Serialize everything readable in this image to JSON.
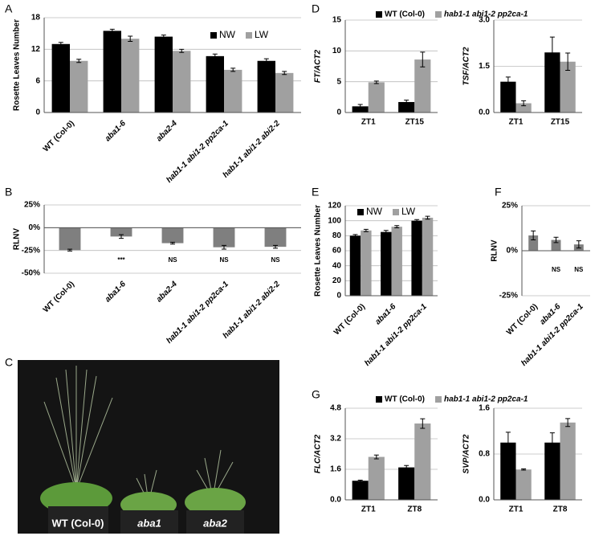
{
  "chart_data": [
    {
      "type": "bar",
      "panel": "A",
      "ylabel": "Rosette Leaves Number",
      "categories": [
        "WT (Col-0)",
        "aba1-6",
        "aba2-4",
        "hab1-1 abi1-2 pp2ca-1",
        "hab1-1 abi1-2 abi2-2"
      ],
      "series": [
        {
          "name": "NW",
          "color": "#000000",
          "values": [
            13,
            15.5,
            14.4,
            10.7,
            9.8
          ],
          "errors": [
            0.3,
            0.3,
            0.3,
            0.4,
            0.4
          ]
        },
        {
          "name": "LW",
          "color": "#a0a0a0",
          "values": [
            9.8,
            14,
            11.7,
            8.1,
            7.5
          ],
          "errors": [
            0.3,
            0.5,
            0.3,
            0.3,
            0.3
          ]
        }
      ],
      "ylim": [
        0,
        18
      ],
      "yticks": [
        0,
        6,
        12,
        18
      ],
      "grid": true
    },
    {
      "type": "bar",
      "panel": "B",
      "ylabel": "RLNV",
      "categories": [
        "WT (Col-0)",
        "aba1-6",
        "aba2-4",
        "hab1-1 abi1-2 pp2ca-1",
        "hab1-1 abi1-2 abi2-2"
      ],
      "values": [
        -24.6,
        -9.7,
        -17,
        -21.5,
        -21
      ],
      "errors": [
        1,
        2,
        1,
        2,
        1.5
      ],
      "color": "#7f7f7f",
      "significance": [
        null,
        "***",
        "NS",
        "NS",
        "NS"
      ],
      "ylim": [
        -50,
        25
      ],
      "yticks": [
        {
          "value": 25,
          "label": "25%"
        },
        {
          "value": 0,
          "label": "0%"
        },
        {
          "value": -25,
          "label": "-25%"
        },
        {
          "value": -50,
          "label": "-50%"
        }
      ],
      "grid": true
    },
    {
      "type": "bar",
      "panel": "D",
      "ylabel": "FT/ACT2",
      "categories": [
        "ZT1",
        "ZT15"
      ],
      "series": [
        {
          "name": "WT (Col-0)",
          "color": "#000000",
          "values": [
            1,
            1.7
          ],
          "errors": [
            0.3,
            0.3
          ]
        },
        {
          "name": "hab1-1 abi1-2 pp2ca-1",
          "color": "#a0a0a0",
          "values": [
            4.9,
            8.6
          ],
          "errors": [
            0.2,
            1.2
          ]
        }
      ],
      "ylim": [
        0,
        15
      ],
      "yticks": [
        0,
        5,
        10,
        15
      ],
      "grid": true
    },
    {
      "type": "bar",
      "ylabel": "TSF/ACT2",
      "categories": [
        "ZT1",
        "ZT15"
      ],
      "series": [
        {
          "color": "#000000",
          "values": [
            1,
            1.95
          ],
          "errors": [
            0.15,
            0.5
          ]
        },
        {
          "color": "#a0a0a0",
          "values": [
            0.3,
            1.65
          ],
          "errors": [
            0.08,
            0.28
          ]
        }
      ],
      "ylim": [
        0,
        3
      ],
      "yticks": [
        {
          "value": 0,
          "label": "0.0"
        },
        1.5,
        {
          "value": 3,
          "label": "3.0"
        }
      ],
      "grid": true
    },
    {
      "type": "bar",
      "panel": "E",
      "ylabel": "Rosette Leaves Number",
      "categories": [
        "WT (Col-0)",
        "aba1-6",
        "hab1-1 abi1-2 pp2ca-1"
      ],
      "series": [
        {
          "name": "NW",
          "color": "#000000",
          "values": [
            80,
            85,
            100
          ],
          "errors": [
            1.5,
            2,
            1.5
          ]
        },
        {
          "name": "LW",
          "color": "#a0a0a0",
          "values": [
            87,
            92,
            104
          ],
          "errors": [
            1.5,
            1.5,
            2
          ]
        }
      ],
      "ylim": [
        0,
        120
      ],
      "yticks": [
        0,
        20,
        40,
        60,
        80,
        100,
        120
      ],
      "grid": true
    },
    {
      "type": "bar",
      "panel": "F",
      "ylabel": "RLNV",
      "categories": [
        "WT (Col-0)",
        "aba1-6",
        "hab1-1 abi1-2 pp2ca-1"
      ],
      "values": [
        8.5,
        6,
        3.5
      ],
      "errors": [
        2.5,
        1.5,
        2
      ],
      "color": "#7f7f7f",
      "significance": [
        null,
        "NS",
        "NS"
      ],
      "ylim": [
        -25,
        25
      ],
      "yticks": [
        {
          "value": 25,
          "label": "25%"
        },
        {
          "value": 0,
          "label": "0%"
        },
        {
          "value": -25,
          "label": "-25%"
        }
      ],
      "grid": true
    },
    {
      "type": "bar",
      "panel": "G",
      "ylabel": "FLC/ACT2",
      "categories": [
        "ZT1",
        "ZT8"
      ],
      "series": [
        {
          "name": "WT (Col-0)",
          "color": "#000000",
          "values": [
            1,
            1.7
          ],
          "errors": [
            0.03,
            0.1
          ]
        },
        {
          "name": "hab1-1 abi1-2 pp2ca-1",
          "color": "#a0a0a0",
          "values": [
            2.25,
            4
          ],
          "errors": [
            0.1,
            0.25
          ]
        }
      ],
      "ylim": [
        0,
        4.8
      ],
      "yticks": [
        {
          "value": 0,
          "label": "0.0"
        },
        1.6,
        3.2,
        4.8
      ],
      "grid": true
    },
    {
      "type": "bar",
      "ylabel": "SVP/ACT2",
      "categories": [
        "ZT1",
        "ZT8"
      ],
      "series": [
        {
          "color": "#000000",
          "values": [
            1,
            1
          ],
          "errors": [
            0.18,
            0.17
          ]
        },
        {
          "color": "#a0a0a0",
          "values": [
            0.53,
            1.35
          ],
          "errors": [
            0.01,
            0.07
          ]
        }
      ],
      "ylim": [
        0,
        1.6
      ],
      "yticks": [
        {
          "value": 0,
          "label": "0.0"
        },
        0.8,
        1.6
      ],
      "grid": true
    }
  ],
  "photo": {
    "panel": "C",
    "labels": [
      "WT (Col-0)",
      "aba1",
      "aba2"
    ]
  }
}
